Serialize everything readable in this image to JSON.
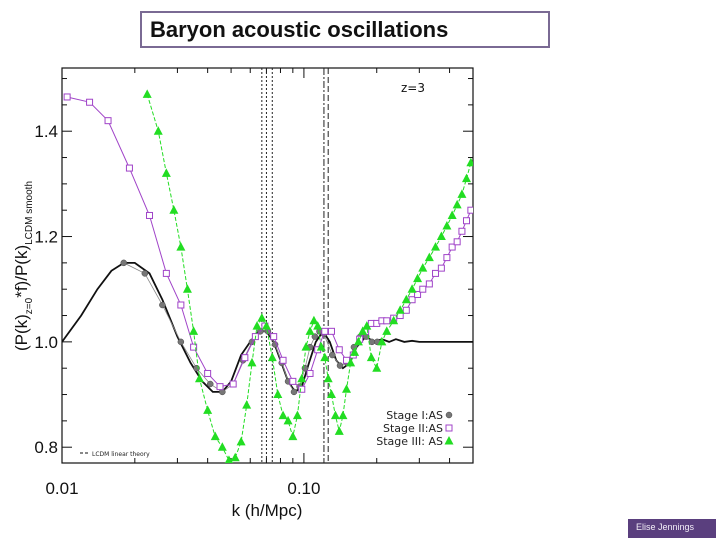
{
  "slide": {
    "title": "Baryon acoustic oscillations",
    "footer": "Elise Jennings"
  },
  "chart_data": {
    "type": "line",
    "annotation": "z=3",
    "xlabel": "k (h/Mpc)",
    "ylabel": "(P(k)z=0*f)/P(k) LCDM smooth",
    "ylabel_main": "(P(k)",
    "ylabel_sub1": "z=0",
    "ylabel_mid": "*f)/P(k)",
    "ylabel_sub2": "LCDM smooth",
    "xscale": "log",
    "xlim": [
      0.01,
      0.5
    ],
    "ylim": [
      0.77,
      1.52
    ],
    "xticks": [
      {
        "v": 0.01,
        "label": "0.01"
      },
      {
        "v": 0.1,
        "label": "0.10"
      }
    ],
    "yticks": [
      {
        "v": 0.8,
        "label": "0.8"
      },
      {
        "v": 1.0,
        "label": "1.0"
      },
      {
        "v": 1.2,
        "label": "1.2"
      },
      {
        "v": 1.4,
        "label": "1.4"
      }
    ],
    "vlines": [
      {
        "x": 0.067,
        "style": "dotted"
      },
      {
        "x": 0.07,
        "style": "dotted"
      },
      {
        "x": 0.074,
        "style": "dotted"
      },
      {
        "x": 0.121,
        "style": "dashdot"
      },
      {
        "x": 0.126,
        "style": "dashed"
      }
    ],
    "legend": {
      "position": "bottom-right",
      "entries": [
        {
          "label": "Stage I:AS",
          "marker": "circle",
          "color": "#777777"
        },
        {
          "label": "Stage II:AS",
          "marker": "square",
          "color": "#a043c8"
        },
        {
          "label": "Stage III: AS",
          "marker": "triangle",
          "color": "#22dd22"
        }
      ]
    },
    "legend_small": {
      "position": "bottom-left",
      "label": "LCDM linear theory",
      "style": "dashed"
    },
    "series": [
      {
        "name": "LCDM linear theory",
        "marker": "none",
        "color": "#111111",
        "x": [
          0.01,
          0.012,
          0.014,
          0.016,
          0.018,
          0.02,
          0.023,
          0.026,
          0.03,
          0.034,
          0.038,
          0.042,
          0.046,
          0.05,
          0.055,
          0.06,
          0.065,
          0.07,
          0.075,
          0.08,
          0.086,
          0.092,
          0.098,
          0.105,
          0.112,
          0.12,
          0.128,
          0.136,
          0.145,
          0.155,
          0.165,
          0.18,
          0.195,
          0.21,
          0.225,
          0.24,
          0.26,
          0.28,
          0.3,
          0.35,
          0.4,
          0.5
        ],
        "y": [
          1.0,
          1.05,
          1.1,
          1.135,
          1.15,
          1.15,
          1.13,
          1.08,
          1.01,
          0.96,
          0.925,
          0.905,
          0.905,
          0.925,
          0.975,
          1.0,
          1.02,
          1.02,
          1.0,
          0.965,
          0.925,
          0.905,
          0.915,
          0.96,
          1.0,
          1.02,
          1.0,
          0.965,
          0.95,
          0.96,
          0.99,
          1.01,
          1.0,
          1.005,
          1.0,
          1.005,
          1.0,
          1.002,
          1.0,
          1.0,
          1.0,
          1.0
        ]
      },
      {
        "name": "Stage I:AS",
        "marker": "circle",
        "color": "#777777",
        "x": [
          0.018,
          0.022,
          0.026,
          0.031,
          0.036,
          0.041,
          0.046,
          0.051,
          0.056,
          0.061,
          0.066,
          0.071,
          0.076,
          0.081,
          0.086,
          0.091,
          0.096,
          0.101,
          0.106,
          0.111,
          0.116,
          0.121,
          0.131,
          0.141,
          0.151,
          0.161,
          0.171,
          0.181,
          0.191,
          0.201
        ],
        "y": [
          1.15,
          1.13,
          1.07,
          1.0,
          0.95,
          0.92,
          0.905,
          0.92,
          0.965,
          1.0,
          1.02,
          1.02,
          0.995,
          0.96,
          0.925,
          0.905,
          0.915,
          0.95,
          0.99,
          1.01,
          1.02,
          1.015,
          0.975,
          0.955,
          0.96,
          0.99,
          1.01,
          1.01,
          1.0,
          1.0
        ]
      },
      {
        "name": "Stage II:AS",
        "marker": "square",
        "color": "#a043c8",
        "x": [
          0.0105,
          0.013,
          0.0155,
          0.019,
          0.023,
          0.027,
          0.031,
          0.035,
          0.04,
          0.045,
          0.051,
          0.057,
          0.063,
          0.069,
          0.075,
          0.082,
          0.09,
          0.098,
          0.106,
          0.114,
          0.122,
          0.13,
          0.14,
          0.15,
          0.16,
          0.17,
          0.18,
          0.19,
          0.2,
          0.21,
          0.22,
          0.235,
          0.25,
          0.265,
          0.28,
          0.295,
          0.31,
          0.33,
          0.35,
          0.37,
          0.39,
          0.41,
          0.43,
          0.45,
          0.47,
          0.49
        ],
        "y": [
          1.465,
          1.455,
          1.42,
          1.33,
          1.24,
          1.13,
          1.07,
          0.99,
          0.94,
          0.915,
          0.92,
          0.97,
          1.01,
          1.03,
          1.01,
          0.965,
          0.925,
          0.91,
          0.94,
          0.985,
          1.02,
          1.02,
          0.985,
          0.965,
          0.975,
          1.005,
          1.02,
          1.035,
          1.035,
          1.04,
          1.04,
          1.045,
          1.05,
          1.06,
          1.08,
          1.09,
          1.1,
          1.11,
          1.13,
          1.14,
          1.16,
          1.18,
          1.19,
          1.21,
          1.23,
          1.25
        ]
      },
      {
        "name": "Stage III: AS",
        "marker": "triangle",
        "color": "#22dd22",
        "x": [
          0.0225,
          0.025,
          0.027,
          0.029,
          0.031,
          0.033,
          0.035,
          0.037,
          0.04,
          0.043,
          0.046,
          0.049,
          0.052,
          0.055,
          0.058,
          0.061,
          0.064,
          0.067,
          0.07,
          0.074,
          0.078,
          0.082,
          0.086,
          0.09,
          0.094,
          0.098,
          0.102,
          0.106,
          0.11,
          0.114,
          0.118,
          0.122,
          0.126,
          0.13,
          0.135,
          0.14,
          0.145,
          0.15,
          0.156,
          0.162,
          0.168,
          0.175,
          0.182,
          0.19,
          0.2,
          0.21,
          0.22,
          0.235,
          0.25,
          0.265,
          0.28,
          0.295,
          0.31,
          0.33,
          0.35,
          0.37,
          0.39,
          0.41,
          0.43,
          0.45,
          0.47,
          0.49
        ],
        "y": [
          1.47,
          1.4,
          1.32,
          1.25,
          1.18,
          1.1,
          1.02,
          0.93,
          0.87,
          0.82,
          0.8,
          0.775,
          0.78,
          0.81,
          0.88,
          0.96,
          1.03,
          1.045,
          1.03,
          0.97,
          0.9,
          0.86,
          0.85,
          0.82,
          0.86,
          0.93,
          0.99,
          1.02,
          1.04,
          1.03,
          0.99,
          0.97,
          0.93,
          0.9,
          0.86,
          0.83,
          0.86,
          0.91,
          0.96,
          0.98,
          1.0,
          1.02,
          1.03,
          0.97,
          0.95,
          1.0,
          1.02,
          1.04,
          1.06,
          1.08,
          1.1,
          1.12,
          1.14,
          1.16,
          1.18,
          1.2,
          1.22,
          1.24,
          1.26,
          1.28,
          1.31,
          1.34
        ]
      }
    ]
  }
}
